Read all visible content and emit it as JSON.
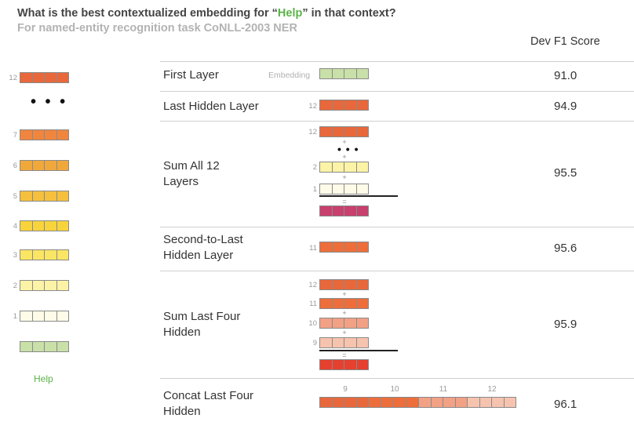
{
  "title": {
    "prefix": "What is the best contextualized embedding for “",
    "highlight": "Help",
    "suffix": "” in that context?"
  },
  "subtitle": "For named-entity recognition task CoNLL-2003 NER",
  "score_header": "Dev F1 Score",
  "left_stack": {
    "layers": [
      {
        "label": "12",
        "color": "#e9683b"
      },
      {
        "label": "7",
        "color": "#f0863e"
      },
      {
        "label": "6",
        "color": "#f1a83a"
      },
      {
        "label": "5",
        "color": "#f5c03e"
      },
      {
        "label": "4",
        "color": "#f8d43c"
      },
      {
        "label": "3",
        "color": "#fbe564"
      },
      {
        "label": "2",
        "color": "#fdf3a6"
      },
      {
        "label": "1",
        "color": "#fefce8"
      }
    ],
    "dots": "• • •",
    "embedding_color": "#c9e0a8",
    "word": "Help"
  },
  "rows": [
    {
      "label": "First Layer",
      "score": "91.0",
      "bar_label": "Embedding"
    },
    {
      "label": "Last Hidden Layer",
      "score": "94.9",
      "bar_label": "12"
    },
    {
      "label": "Sum All 12 Layers",
      "score": "95.5",
      "bar_labels": [
        "12",
        "2",
        "1"
      ],
      "result_color": "#c8406e"
    },
    {
      "label": "Second-to-Last Hidden Layer",
      "score": "95.6",
      "bar_label": "11"
    },
    {
      "label": "Sum Last Four Hidden",
      "score": "95.9",
      "bar_labels": [
        "12",
        "11",
        "10",
        "9"
      ],
      "result_color": "#e6402f"
    },
    {
      "label": "Concat Last Four Hidden",
      "score": "96.1",
      "concat_labels": [
        "9",
        "10",
        "11",
        "12"
      ]
    }
  ],
  "ops": {
    "plus": "+",
    "equals": "=",
    "dots": "• • •"
  },
  "colors": {
    "layer12": "#e9683b",
    "layer11": "#ee6e3b",
    "layer10": "#f2a185",
    "layer9": "#f6c3ae",
    "layer2": "#fdf3a6",
    "layer1": "#fefce8",
    "embedding": "#c9e0a8"
  }
}
